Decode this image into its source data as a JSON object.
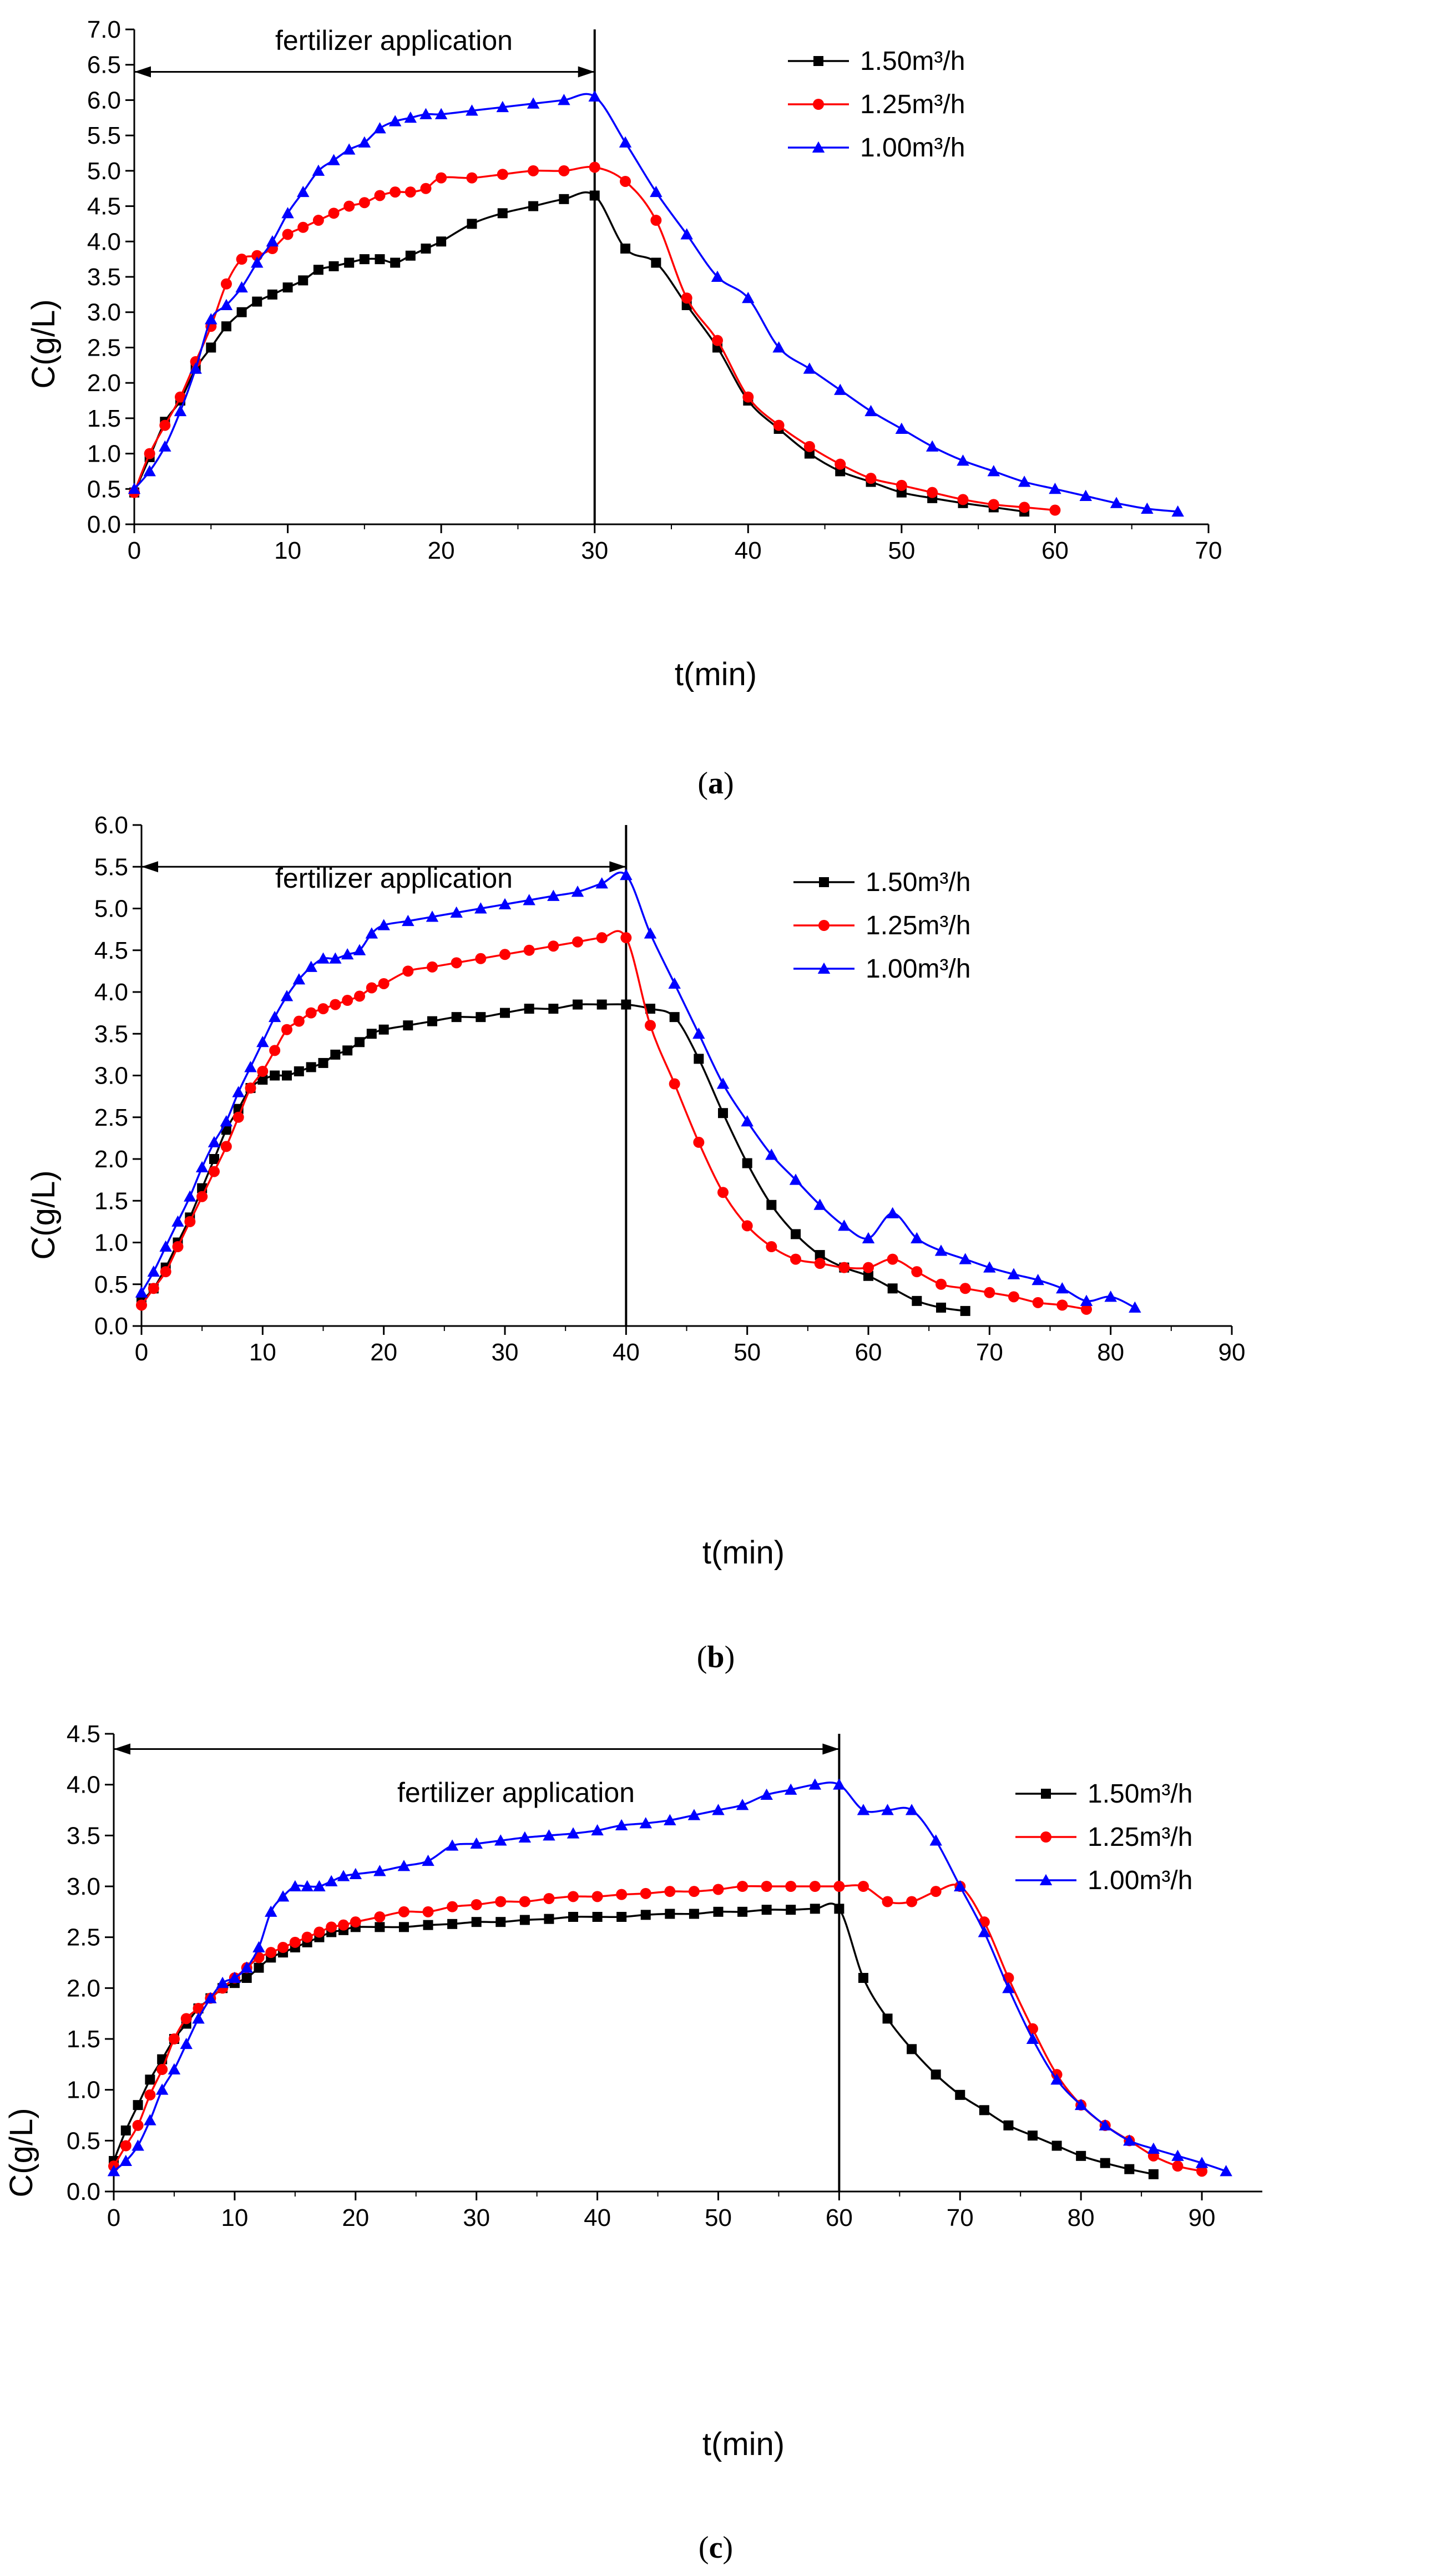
{
  "chart_data": [
    {
      "type": "line",
      "panel": "a",
      "caption": "(a)",
      "caption_open": "(",
      "caption_letter": "a",
      "caption_close": ")",
      "xlabel": "t(min)",
      "ylabel": "C(g/L)",
      "xlim": [
        0,
        70
      ],
      "ylim": [
        0,
        7.0
      ],
      "xticks": [
        0,
        10,
        20,
        30,
        40,
        50,
        60,
        70
      ],
      "xtick_labels": [
        "0",
        "10",
        "20",
        "30",
        "40",
        "50",
        "60",
        "70"
      ],
      "yticks": [
        0,
        0.5,
        1.0,
        1.5,
        2.0,
        2.5,
        3.0,
        3.5,
        4.0,
        4.5,
        5.0,
        5.5,
        6.0,
        6.5,
        7.0
      ],
      "ytick_labels": [
        "0.0",
        "0.5",
        "1.0",
        "1.5",
        "2.0",
        "2.5",
        "3.0",
        "3.5",
        "4.0",
        "4.5",
        "5.0",
        "5.5",
        "6.0",
        "6.5",
        "7.0"
      ],
      "annotation": {
        "text": "fertilizer application",
        "from": 0,
        "to": 30,
        "y": 6.4
      },
      "vline_x": 30,
      "legend_position": "top-right",
      "series": [
        {
          "name": "1.50m³/h",
          "color": "#000000",
          "marker": "square",
          "x": [
            0,
            1,
            2,
            3,
            4,
            5,
            6,
            7,
            8,
            9,
            10,
            11,
            12,
            13,
            14,
            15,
            16,
            17,
            18,
            19,
            20,
            22,
            24,
            26,
            28,
            30,
            32,
            34,
            36,
            38,
            40,
            42,
            44,
            46,
            48,
            50,
            52,
            54,
            56,
            58
          ],
          "y": [
            0.45,
            0.95,
            1.45,
            1.75,
            2.2,
            2.5,
            2.8,
            3.0,
            3.15,
            3.25,
            3.35,
            3.45,
            3.6,
            3.65,
            3.7,
            3.75,
            3.75,
            3.7,
            3.8,
            3.9,
            4.0,
            4.25,
            4.4,
            4.5,
            4.6,
            4.65,
            3.9,
            3.7,
            3.1,
            2.5,
            1.75,
            1.35,
            1.0,
            0.75,
            0.6,
            0.45,
            0.37,
            0.3,
            0.24,
            0.18
          ]
        },
        {
          "name": "1.25m³/h",
          "color": "#ff0000",
          "marker": "circle",
          "x": [
            0,
            1,
            2,
            3,
            4,
            5,
            6,
            7,
            8,
            9,
            10,
            11,
            12,
            13,
            14,
            15,
            16,
            17,
            18,
            19,
            20,
            22,
            24,
            26,
            28,
            30,
            32,
            34,
            36,
            38,
            40,
            42,
            44,
            46,
            48,
            50,
            52,
            54,
            56,
            58,
            60
          ],
          "y": [
            0.45,
            1.0,
            1.4,
            1.8,
            2.3,
            2.8,
            3.4,
            3.75,
            3.8,
            3.9,
            4.1,
            4.2,
            4.3,
            4.4,
            4.5,
            4.55,
            4.65,
            4.7,
            4.7,
            4.75,
            4.9,
            4.9,
            4.95,
            5.0,
            5.0,
            5.05,
            4.85,
            4.3,
            3.2,
            2.6,
            1.8,
            1.4,
            1.1,
            0.85,
            0.65,
            0.55,
            0.45,
            0.35,
            0.28,
            0.24,
            0.2
          ]
        },
        {
          "name": "1.00m³/h",
          "color": "#0000ff",
          "marker": "triangle",
          "x": [
            0,
            1,
            2,
            3,
            4,
            5,
            6,
            7,
            8,
            9,
            10,
            11,
            12,
            13,
            14,
            15,
            16,
            17,
            18,
            19,
            20,
            22,
            24,
            26,
            28,
            30,
            32,
            34,
            36,
            38,
            40,
            42,
            44,
            46,
            48,
            50,
            52,
            54,
            56,
            58,
            60,
            62,
            64,
            66,
            68
          ],
          "y": [
            0.5,
            0.75,
            1.1,
            1.6,
            2.2,
            2.9,
            3.1,
            3.35,
            3.7,
            4.0,
            4.4,
            4.7,
            5.0,
            5.15,
            5.3,
            5.4,
            5.6,
            5.7,
            5.75,
            5.8,
            5.8,
            5.85,
            5.9,
            5.95,
            6.0,
            6.05,
            5.4,
            4.7,
            4.1,
            3.5,
            3.2,
            2.5,
            2.2,
            1.9,
            1.6,
            1.35,
            1.1,
            0.9,
            0.75,
            0.6,
            0.5,
            0.4,
            0.3,
            0.22,
            0.18
          ]
        }
      ]
    },
    {
      "type": "line",
      "panel": "b",
      "caption": "(b)",
      "caption_open": "(",
      "caption_letter": "b",
      "caption_close": ")",
      "xlabel": "t(min)",
      "ylabel": "C(g/L)",
      "xlim": [
        0,
        90
      ],
      "ylim": [
        0,
        6.0
      ],
      "xticks": [
        0,
        10,
        20,
        30,
        40,
        50,
        60,
        70,
        80,
        90
      ],
      "xtick_labels": [
        "0",
        "10",
        "20",
        "30",
        "40",
        "50",
        "60",
        "70",
        "80",
        "90"
      ],
      "yticks": [
        0,
        0.5,
        1.0,
        1.5,
        2.0,
        2.5,
        3.0,
        3.5,
        4.0,
        4.5,
        5.0,
        5.5,
        6.0
      ],
      "ytick_labels": [
        "0.0",
        "0.5",
        "1.0",
        "1.5",
        "2.0",
        "2.5",
        "3.0",
        "3.5",
        "4.0",
        "4.5",
        "5.0",
        "5.5",
        "6.0"
      ],
      "annotation": {
        "text": "fertilizer application",
        "from": 0,
        "to": 40,
        "y": 5.5
      },
      "vline_x": 40,
      "legend_position": "right",
      "series": [
        {
          "name": "1.50m³/h",
          "color": "#000000",
          "marker": "square",
          "x": [
            0,
            1,
            2,
            3,
            4,
            5,
            6,
            7,
            8,
            9,
            10,
            11,
            12,
            13,
            14,
            15,
            16,
            17,
            18,
            19,
            20,
            22,
            24,
            26,
            28,
            30,
            32,
            34,
            36,
            38,
            40,
            42,
            44,
            46,
            48,
            50,
            52,
            54,
            56,
            58,
            60,
            62,
            64,
            66,
            68
          ],
          "y": [
            0.3,
            0.45,
            0.7,
            1.0,
            1.3,
            1.65,
            2.0,
            2.35,
            2.6,
            2.85,
            2.95,
            3.0,
            3.0,
            3.05,
            3.1,
            3.15,
            3.25,
            3.3,
            3.4,
            3.5,
            3.55,
            3.6,
            3.65,
            3.7,
            3.7,
            3.75,
            3.8,
            3.8,
            3.85,
            3.85,
            3.85,
            3.8,
            3.7,
            3.2,
            2.55,
            1.95,
            1.45,
            1.1,
            0.85,
            0.7,
            0.6,
            0.45,
            0.3,
            0.22,
            0.18
          ]
        },
        {
          "name": "1.25m³/h",
          "color": "#ff0000",
          "marker": "circle",
          "x": [
            0,
            1,
            2,
            3,
            4,
            5,
            6,
            7,
            8,
            9,
            10,
            11,
            12,
            13,
            14,
            15,
            16,
            17,
            18,
            19,
            20,
            22,
            24,
            26,
            28,
            30,
            32,
            34,
            36,
            38,
            40,
            42,
            44,
            46,
            48,
            50,
            52,
            54,
            56,
            58,
            60,
            62,
            64,
            66,
            68,
            70,
            72,
            74,
            76,
            78
          ],
          "y": [
            0.25,
            0.45,
            0.65,
            0.95,
            1.25,
            1.55,
            1.85,
            2.15,
            2.5,
            2.85,
            3.05,
            3.3,
            3.55,
            3.65,
            3.75,
            3.8,
            3.85,
            3.9,
            3.95,
            4.05,
            4.1,
            4.25,
            4.3,
            4.35,
            4.4,
            4.45,
            4.5,
            4.55,
            4.6,
            4.65,
            4.65,
            3.6,
            2.9,
            2.2,
            1.6,
            1.2,
            0.95,
            0.8,
            0.75,
            0.7,
            0.7,
            0.8,
            0.65,
            0.5,
            0.45,
            0.4,
            0.35,
            0.28,
            0.25,
            0.2
          ]
        },
        {
          "name": "1.00m³/h",
          "color": "#0000ff",
          "marker": "triangle",
          "x": [
            0,
            1,
            2,
            3,
            4,
            5,
            6,
            7,
            8,
            9,
            10,
            11,
            12,
            13,
            14,
            15,
            16,
            17,
            18,
            19,
            20,
            22,
            24,
            26,
            28,
            30,
            32,
            34,
            36,
            38,
            40,
            42,
            44,
            46,
            48,
            50,
            52,
            54,
            56,
            58,
            60,
            62,
            64,
            66,
            68,
            70,
            72,
            74,
            76,
            78,
            80,
            82
          ],
          "y": [
            0.4,
            0.65,
            0.95,
            1.25,
            1.55,
            1.9,
            2.2,
            2.45,
            2.8,
            3.1,
            3.4,
            3.7,
            3.95,
            4.15,
            4.3,
            4.4,
            4.4,
            4.45,
            4.5,
            4.7,
            4.8,
            4.85,
            4.9,
            4.95,
            5.0,
            5.05,
            5.1,
            5.15,
            5.2,
            5.3,
            5.4,
            4.7,
            4.1,
            3.5,
            2.9,
            2.45,
            2.05,
            1.75,
            1.45,
            1.2,
            1.05,
            1.35,
            1.05,
            0.9,
            0.8,
            0.7,
            0.62,
            0.55,
            0.45,
            0.3,
            0.35,
            0.22
          ]
        }
      ]
    },
    {
      "type": "line",
      "panel": "c",
      "caption": "(c)",
      "caption_open": "(",
      "caption_letter": "c",
      "caption_close": ")",
      "xlabel": "t(min)",
      "ylabel": "C(g/L)",
      "xlim": [
        0,
        95
      ],
      "ylim": [
        0,
        4.5
      ],
      "xticks": [
        0,
        10,
        20,
        30,
        40,
        50,
        60,
        70,
        80,
        90
      ],
      "xtick_labels": [
        "0",
        "10",
        "20",
        "30",
        "40",
        "50",
        "60",
        "70",
        "80",
        "90"
      ],
      "yticks": [
        0,
        0.5,
        1.0,
        1.5,
        2.0,
        2.5,
        3.0,
        3.5,
        4.0,
        4.5
      ],
      "ytick_labels": [
        "0.0",
        "0.5",
        "1.0",
        "1.5",
        "2.0",
        "2.5",
        "3.0",
        "3.5",
        "4.0",
        "4.5"
      ],
      "annotation": {
        "text": "fertilizer application",
        "from": 0,
        "to": 60,
        "y": 4.35
      },
      "vline_x": 60,
      "legend_position": "top-right",
      "series": [
        {
          "name": "1.50m³/h",
          "color": "#000000",
          "marker": "square",
          "x": [
            0,
            1,
            2,
            3,
            4,
            5,
            6,
            7,
            8,
            9,
            10,
            11,
            12,
            13,
            14,
            15,
            16,
            17,
            18,
            19,
            20,
            22,
            24,
            26,
            28,
            30,
            32,
            34,
            36,
            38,
            40,
            42,
            44,
            46,
            48,
            50,
            52,
            54,
            56,
            58,
            60,
            62,
            64,
            66,
            68,
            70,
            72,
            74,
            76,
            78,
            80,
            82,
            84,
            86
          ],
          "y": [
            0.3,
            0.6,
            0.85,
            1.1,
            1.3,
            1.5,
            1.65,
            1.8,
            1.9,
            2.0,
            2.05,
            2.1,
            2.2,
            2.3,
            2.35,
            2.4,
            2.45,
            2.5,
            2.55,
            2.57,
            2.6,
            2.6,
            2.6,
            2.62,
            2.63,
            2.65,
            2.65,
            2.67,
            2.68,
            2.7,
            2.7,
            2.7,
            2.72,
            2.73,
            2.73,
            2.75,
            2.75,
            2.77,
            2.77,
            2.78,
            2.78,
            2.1,
            1.7,
            1.4,
            1.15,
            0.95,
            0.8,
            0.65,
            0.55,
            0.45,
            0.35,
            0.28,
            0.22,
            0.17
          ]
        },
        {
          "name": "1.25m³/h",
          "color": "#ff0000",
          "marker": "circle",
          "x": [
            0,
            1,
            2,
            3,
            4,
            5,
            6,
            7,
            8,
            9,
            10,
            11,
            12,
            13,
            14,
            15,
            16,
            17,
            18,
            19,
            20,
            22,
            24,
            26,
            28,
            30,
            32,
            34,
            36,
            38,
            40,
            42,
            44,
            46,
            48,
            50,
            52,
            54,
            56,
            58,
            60,
            62,
            64,
            66,
            68,
            70,
            72,
            74,
            76,
            78,
            80,
            82,
            84,
            86,
            88,
            90
          ],
          "y": [
            0.25,
            0.45,
            0.65,
            0.95,
            1.2,
            1.5,
            1.7,
            1.8,
            1.9,
            2.0,
            2.1,
            2.2,
            2.3,
            2.35,
            2.4,
            2.45,
            2.5,
            2.55,
            2.6,
            2.62,
            2.65,
            2.7,
            2.75,
            2.75,
            2.8,
            2.82,
            2.85,
            2.85,
            2.88,
            2.9,
            2.9,
            2.92,
            2.93,
            2.95,
            2.95,
            2.97,
            3.0,
            3.0,
            3.0,
            3.0,
            3.0,
            3.0,
            2.85,
            2.85,
            2.95,
            3.0,
            2.65,
            2.1,
            1.6,
            1.15,
            0.85,
            0.65,
            0.5,
            0.35,
            0.25,
            0.2
          ]
        },
        {
          "name": "1.00m³/h",
          "color": "#0000ff",
          "marker": "triangle",
          "x": [
            0,
            1,
            2,
            3,
            4,
            5,
            6,
            7,
            8,
            9,
            10,
            11,
            12,
            13,
            14,
            15,
            16,
            17,
            18,
            19,
            20,
            22,
            24,
            26,
            28,
            30,
            32,
            34,
            36,
            38,
            40,
            42,
            44,
            46,
            48,
            50,
            52,
            54,
            56,
            58,
            60,
            62,
            64,
            66,
            68,
            70,
            72,
            74,
            76,
            78,
            80,
            82,
            84,
            86,
            88,
            90,
            92
          ],
          "y": [
            0.2,
            0.3,
            0.45,
            0.7,
            1.0,
            1.2,
            1.45,
            1.7,
            1.9,
            2.05,
            2.1,
            2.2,
            2.4,
            2.75,
            2.9,
            3.0,
            3.0,
            3.0,
            3.05,
            3.1,
            3.12,
            3.15,
            3.2,
            3.25,
            3.4,
            3.42,
            3.45,
            3.48,
            3.5,
            3.52,
            3.55,
            3.6,
            3.62,
            3.65,
            3.7,
            3.75,
            3.8,
            3.9,
            3.95,
            4.0,
            4.0,
            3.75,
            3.75,
            3.75,
            3.45,
            3.0,
            2.55,
            2.0,
            1.5,
            1.1,
            0.85,
            0.65,
            0.5,
            0.42,
            0.35,
            0.28,
            0.2
          ]
        }
      ]
    }
  ]
}
